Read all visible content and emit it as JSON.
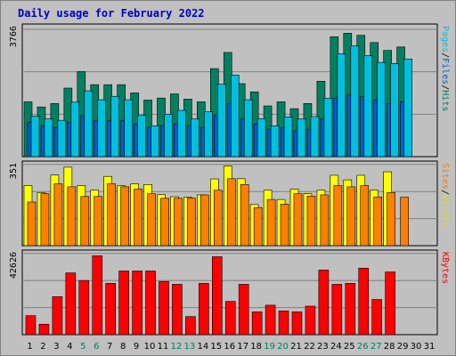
{
  "chart_data": [
    {
      "type": "bar",
      "title": "Daily usage for February 2022",
      "ymax_label": "3766",
      "ylabel_parts": [
        {
          "text": "Pages",
          "color": "#00c0e0"
        },
        {
          "text": "/",
          "color": "#000000"
        },
        {
          "text": "Files",
          "color": "#0060d0"
        },
        {
          "text": "/",
          "color": "#000000"
        },
        {
          "text": "Hits",
          "color": "#008060"
        }
      ],
      "ymax": 3766,
      "series": [
        {
          "name": "Hits",
          "color": "#008060",
          "values": [
            1600,
            1450,
            1550,
            2000,
            2480,
            2100,
            2100,
            2100,
            1860,
            1650,
            1710,
            1830,
            1680,
            1600,
            2570,
            3040,
            2130,
            1890,
            1480,
            1600,
            1400,
            1550,
            2200,
            3500,
            3600,
            3540,
            3330,
            3100,
            3200,
            0,
            0
          ]
        },
        {
          "name": "Files",
          "color": "#0060d0",
          "values": [
            1000,
            900,
            850,
            1000,
            1200,
            1050,
            1050,
            1050,
            950,
            850,
            900,
            950,
            900,
            850,
            1200,
            1550,
            1100,
            950,
            800,
            850,
            750,
            800,
            1100,
            1700,
            1800,
            1750,
            1650,
            1550,
            1600,
            0,
            0
          ]
        },
        {
          "name": "Pages",
          "color": "#00c0e0",
          "values": [
            1180,
            1100,
            1060,
            1590,
            1920,
            1660,
            1760,
            1660,
            1200,
            900,
            1240,
            1350,
            1100,
            1310,
            2110,
            2380,
            1660,
            1110,
            900,
            1160,
            1100,
            1170,
            1700,
            3000,
            3230,
            2950,
            2750,
            2720,
            2850,
            0,
            0
          ]
        }
      ]
    },
    {
      "type": "bar",
      "ymax_label": "351",
      "ylabel_parts": [
        {
          "text": "Sites",
          "color": "#f08000"
        },
        {
          "text": "/",
          "color": "#000000"
        },
        {
          "text": "Visits",
          "color": "#e0e000"
        }
      ],
      "ymax": 351,
      "series": [
        {
          "name": "Visits",
          "color": "#ffff00",
          "values": [
            260,
            230,
            306,
            340,
            260,
            240,
            300,
            260,
            268,
            265,
            221,
            212,
            210,
            220,
            289,
            345,
            290,
            178,
            240,
            200,
            245,
            225,
            240,
            305,
            285,
            305,
            240,
            320,
            0,
            0,
            0
          ]
        },
        {
          "name": "Sites",
          "color": "#ff8000",
          "values": [
            189,
            225,
            268,
            255,
            213,
            213,
            268,
            255,
            245,
            225,
            205,
            205,
            206,
            220,
            240,
            290,
            265,
            165,
            200,
            180,
            225,
            215,
            220,
            260,
            255,
            260,
            211,
            230,
            210,
            0,
            0
          ]
        }
      ]
    },
    {
      "type": "bar",
      "ymax_label": "42626",
      "ylabel_parts": [
        {
          "text": "KBytes",
          "color": "#ff0000"
        }
      ],
      "ymax": 42626,
      "series": [
        {
          "name": "KBytes",
          "color": "#ff0000",
          "values": [
            10000,
            5500,
            20000,
            32500,
            28500,
            41500,
            27000,
            33500,
            33500,
            33500,
            28000,
            26500,
            9500,
            27000,
            41000,
            17500,
            26500,
            12000,
            15500,
            12500,
            12000,
            15000,
            34000,
            26500,
            27000,
            35000,
            18500,
            33000,
            0,
            0,
            0
          ]
        }
      ]
    }
  ],
  "x_labels": [
    {
      "text": "1",
      "color": "#000000"
    },
    {
      "text": "2",
      "color": "#000000"
    },
    {
      "text": "3",
      "color": "#000000"
    },
    {
      "text": "4",
      "color": "#000000"
    },
    {
      "text": "5",
      "color": "#008060"
    },
    {
      "text": "6",
      "color": "#008060"
    },
    {
      "text": "7",
      "color": "#000000"
    },
    {
      "text": "8",
      "color": "#000000"
    },
    {
      "text": "9",
      "color": "#000000"
    },
    {
      "text": "10",
      "color": "#000000"
    },
    {
      "text": "11",
      "color": "#000000"
    },
    {
      "text": "12",
      "color": "#008060"
    },
    {
      "text": "13",
      "color": "#008060"
    },
    {
      "text": "14",
      "color": "#000000"
    },
    {
      "text": "15",
      "color": "#000000"
    },
    {
      "text": "16",
      "color": "#000000"
    },
    {
      "text": "17",
      "color": "#000000"
    },
    {
      "text": "18",
      "color": "#000000"
    },
    {
      "text": "19",
      "color": "#008060"
    },
    {
      "text": "20",
      "color": "#008060"
    },
    {
      "text": "21",
      "color": "#000000"
    },
    {
      "text": "22",
      "color": "#000000"
    },
    {
      "text": "23",
      "color": "#000000"
    },
    {
      "text": "24",
      "color": "#000000"
    },
    {
      "text": "25",
      "color": "#000000"
    },
    {
      "text": "26",
      "color": "#008060"
    },
    {
      "text": "27",
      "color": "#008060"
    },
    {
      "text": "28",
      "color": "#000000"
    },
    {
      "text": "29",
      "color": "#000000"
    },
    {
      "text": "30",
      "color": "#000000"
    },
    {
      "text": "31",
      "color": "#000000"
    }
  ],
  "title_color": "#0000c0"
}
